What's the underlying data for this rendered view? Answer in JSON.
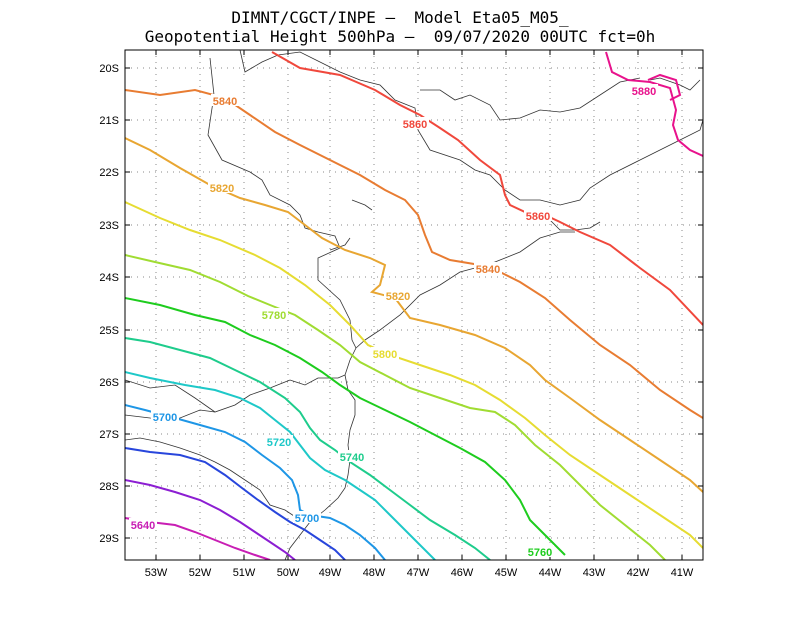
{
  "title_line1": "DIMNT/CGCT/INPE –  Model Eta05_M05_",
  "title_line2": "Geopotential Height 500hPa –  09/07/2020 00UTC fct=0h",
  "lat_labels": [
    "20S",
    "21S",
    "22S",
    "23S",
    "24S",
    "25S",
    "26S",
    "27S",
    "28S",
    "29S"
  ],
  "lon_labels": [
    "53W",
    "52W",
    "51W",
    "50W",
    "49W",
    "48W",
    "47W",
    "46W",
    "45W",
    "44W",
    "43W",
    "42W",
    "41W"
  ],
  "contours": [
    {
      "value": "5880",
      "color": "#e8128c"
    },
    {
      "value": "5860",
      "color": "#f0483c"
    },
    {
      "value": "5840",
      "color": "#e87c32"
    },
    {
      "value": "5820",
      "color": "#e8a632"
    },
    {
      "value": "5800",
      "color": "#e6dc32"
    },
    {
      "value": "5780",
      "color": "#a0dc32"
    },
    {
      "value": "5760",
      "color": "#1ecc1e"
    },
    {
      "value": "5740",
      "color": "#1ecc8c"
    },
    {
      "value": "5720",
      "color": "#1ec8c8"
    },
    {
      "value": "5700",
      "color": "#1e96e6"
    },
    {
      "value": "5680",
      "color": "#2846dc"
    },
    {
      "value": "5660",
      "color": "#8c1ed2"
    },
    {
      "value": "5640",
      "color": "#c81eb4"
    }
  ],
  "contour_labels": [
    {
      "text": "5880",
      "idx": 0
    },
    {
      "text": "5860",
      "idx": 1
    },
    {
      "text": "5860",
      "idx": 1
    },
    {
      "text": "5840",
      "idx": 2
    },
    {
      "text": "5840",
      "idx": 2
    },
    {
      "text": "5820",
      "idx": 3
    },
    {
      "text": "5820",
      "idx": 3
    },
    {
      "text": "5800",
      "idx": 4
    },
    {
      "text": "5780",
      "idx": 5
    },
    {
      "text": "5760",
      "idx": 6
    },
    {
      "text": "5740",
      "idx": 7
    },
    {
      "text": "5720",
      "idx": 8
    },
    {
      "text": "5700",
      "idx": 9
    },
    {
      "text": "5700",
      "idx": 9
    },
    {
      "text": "5640",
      "idx": 12
    }
  ]
}
